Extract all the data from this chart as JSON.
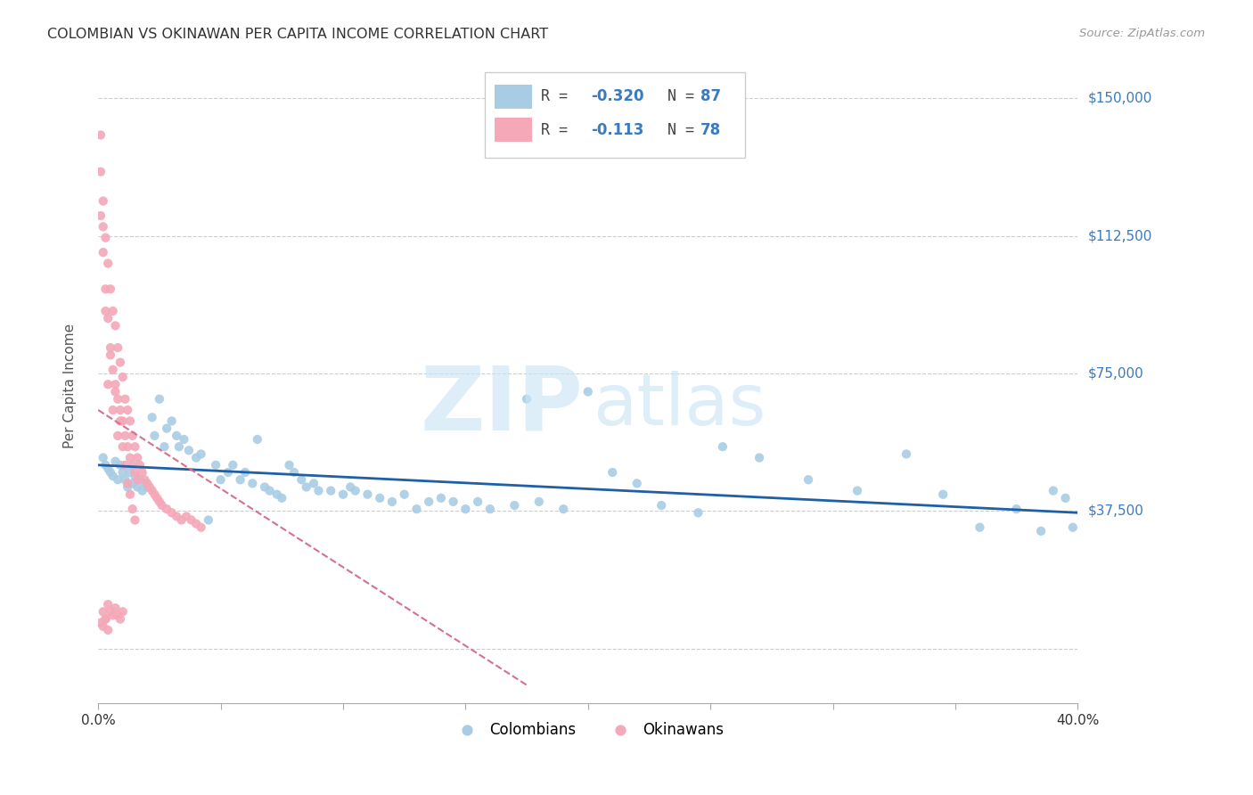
{
  "title": "COLOMBIAN VS OKINAWAN PER CAPITA INCOME CORRELATION CHART",
  "source": "Source: ZipAtlas.com",
  "ylabel": "Per Capita Income",
  "y_ticks": [
    0,
    37500,
    75000,
    112500,
    150000
  ],
  "y_tick_labels": [
    "",
    "$37,500",
    "$75,000",
    "$112,500",
    "$150,000"
  ],
  "x_lim": [
    0.0,
    0.4
  ],
  "y_lim": [
    -15000,
    158000
  ],
  "blue_color": "#a8cce4",
  "pink_color": "#f4a8b8",
  "trend_blue": "#1f5fa6",
  "trend_pink": "#d47090",
  "grid_color": "#cccccc",
  "text_color": "#555555",
  "right_label_color": "#3a7bbf",
  "colombians_x": [
    0.002,
    0.003,
    0.004,
    0.005,
    0.006,
    0.007,
    0.008,
    0.009,
    0.01,
    0.011,
    0.012,
    0.013,
    0.014,
    0.015,
    0.016,
    0.017,
    0.018,
    0.019,
    0.02,
    0.022,
    0.023,
    0.025,
    0.027,
    0.028,
    0.03,
    0.032,
    0.033,
    0.035,
    0.037,
    0.04,
    0.042,
    0.045,
    0.048,
    0.05,
    0.053,
    0.055,
    0.058,
    0.06,
    0.063,
    0.065,
    0.068,
    0.07,
    0.073,
    0.075,
    0.078,
    0.08,
    0.083,
    0.085,
    0.088,
    0.09,
    0.095,
    0.1,
    0.103,
    0.105,
    0.11,
    0.115,
    0.12,
    0.125,
    0.13,
    0.135,
    0.14,
    0.145,
    0.15,
    0.155,
    0.16,
    0.17,
    0.175,
    0.18,
    0.19,
    0.2,
    0.21,
    0.22,
    0.23,
    0.245,
    0.255,
    0.27,
    0.29,
    0.31,
    0.33,
    0.345,
    0.36,
    0.375,
    0.385,
    0.39,
    0.395,
    0.398
  ],
  "colombians_y": [
    52000,
    50000,
    49000,
    48000,
    47000,
    51000,
    46000,
    50000,
    48000,
    46000,
    44000,
    48000,
    45000,
    47000,
    44000,
    46000,
    43000,
    45000,
    44000,
    63000,
    58000,
    68000,
    55000,
    60000,
    62000,
    58000,
    55000,
    57000,
    54000,
    52000,
    53000,
    35000,
    50000,
    46000,
    48000,
    50000,
    46000,
    48000,
    45000,
    57000,
    44000,
    43000,
    42000,
    41000,
    50000,
    48000,
    46000,
    44000,
    45000,
    43000,
    43000,
    42000,
    44000,
    43000,
    42000,
    41000,
    40000,
    42000,
    38000,
    40000,
    41000,
    40000,
    38000,
    40000,
    38000,
    39000,
    68000,
    40000,
    38000,
    70000,
    48000,
    45000,
    39000,
    37000,
    55000,
    52000,
    46000,
    43000,
    53000,
    42000,
    33000,
    38000,
    32000,
    43000,
    41000,
    33000
  ],
  "okinawans_x": [
    0.001,
    0.001,
    0.002,
    0.002,
    0.003,
    0.003,
    0.004,
    0.004,
    0.005,
    0.005,
    0.006,
    0.006,
    0.007,
    0.007,
    0.008,
    0.008,
    0.009,
    0.009,
    0.01,
    0.01,
    0.011,
    0.011,
    0.012,
    0.012,
    0.013,
    0.013,
    0.014,
    0.014,
    0.015,
    0.015,
    0.016,
    0.016,
    0.017,
    0.018,
    0.019,
    0.02,
    0.021,
    0.022,
    0.023,
    0.024,
    0.025,
    0.026,
    0.028,
    0.03,
    0.032,
    0.034,
    0.036,
    0.038,
    0.04,
    0.042,
    0.002,
    0.003,
    0.001,
    0.004,
    0.005,
    0.006,
    0.007,
    0.008,
    0.009,
    0.01,
    0.011,
    0.012,
    0.013,
    0.014,
    0.015,
    0.002,
    0.003,
    0.004,
    0.005,
    0.006,
    0.007,
    0.008,
    0.009,
    0.01,
    0.001,
    0.002,
    0.003,
    0.004
  ],
  "okinawans_y": [
    140000,
    118000,
    122000,
    108000,
    112000,
    98000,
    105000,
    90000,
    98000,
    82000,
    92000,
    76000,
    88000,
    72000,
    82000,
    68000,
    78000,
    65000,
    74000,
    62000,
    68000,
    58000,
    65000,
    55000,
    62000,
    52000,
    58000,
    50000,
    55000,
    48000,
    52000,
    46000,
    50000,
    48000,
    46000,
    45000,
    44000,
    43000,
    42000,
    41000,
    40000,
    39000,
    38000,
    37000,
    36000,
    35000,
    36000,
    35000,
    34000,
    33000,
    115000,
    92000,
    130000,
    72000,
    80000,
    65000,
    70000,
    58000,
    62000,
    55000,
    50000,
    45000,
    42000,
    38000,
    35000,
    10000,
    8000,
    12000,
    10000,
    9000,
    11000,
    9000,
    8000,
    10000,
    7000,
    6000,
    8000,
    5000
  ]
}
